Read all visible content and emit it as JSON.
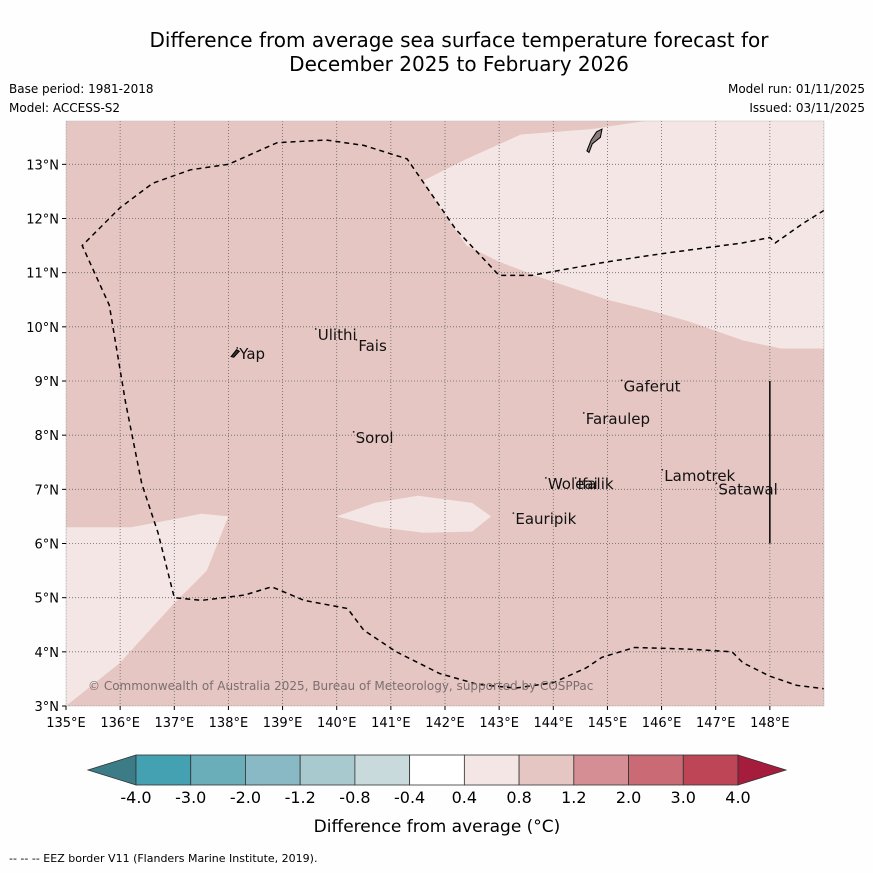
{
  "title": {
    "line1": "Difference from average sea surface temperature forecast for",
    "line2": "December 2025 to February 2026"
  },
  "info": {
    "base_period": "Base period: 1981-2018",
    "model": "Model: ACCESS-S2",
    "model_run": "Model run: 01/11/2025",
    "issued": "Issued: 03/11/2025"
  },
  "map": {
    "lon_range": [
      135,
      149
    ],
    "lat_range": [
      3,
      13.8
    ],
    "lon_ticks": [
      "135°E",
      "136°E",
      "137°E",
      "138°E",
      "139°E",
      "140°E",
      "141°E",
      "142°E",
      "143°E",
      "144°E",
      "145°E",
      "146°E",
      "147°E",
      "148°E"
    ],
    "lat_ticks": [
      "3°N",
      "4°N",
      "5°N",
      "6°N",
      "7°N",
      "8°N",
      "9°N",
      "10°N",
      "11°N",
      "12°N",
      "13°N"
    ],
    "background_class_color": "#e6c6c2",
    "light_class_color": "#f4e6e4",
    "eez_color": "#000000",
    "places": [
      {
        "name": "Yap",
        "lon": 138.2,
        "lat": 9.5
      },
      {
        "name": "Ulithi",
        "lon": 139.65,
        "lat": 9.85
      },
      {
        "name": "Fais",
        "lon": 140.4,
        "lat": 9.65
      },
      {
        "name": "Sorol",
        "lon": 140.35,
        "lat": 7.95
      },
      {
        "name": "Gaferut",
        "lon": 145.3,
        "lat": 8.9
      },
      {
        "name": "Faraulep",
        "lon": 144.6,
        "lat": 8.3
      },
      {
        "name": "Woleai",
        "lon": 143.9,
        "lat": 7.1
      },
      {
        "name": "Ifalik",
        "lon": 144.45,
        "lat": 7.1
      },
      {
        "name": "Lamotrek",
        "lon": 146.05,
        "lat": 7.25
      },
      {
        "name": "Satawal",
        "lon": 147.05,
        "lat": 7.0
      },
      {
        "name": "Eauripik",
        "lon": 143.3,
        "lat": 6.45
      }
    ],
    "copyright": "© Commonwealth of Australia 2025, Bureau of Meteorology, supported by COSPPac"
  },
  "legend": {
    "ticks": [
      "-4.0",
      "-3.0",
      "-2.0",
      "-1.2",
      "-0.8",
      "-0.4",
      "0.4",
      "0.8",
      "1.2",
      "2.0",
      "3.0",
      "4.0"
    ],
    "colors": [
      "#44a1b1",
      "#6aaeba",
      "#88b9c4",
      "#a8c9ce",
      "#c8dadc",
      "#ffffff",
      "#f4e6e4",
      "#e6c6c2",
      "#d58e93",
      "#ca6a74",
      "#bd4555"
    ],
    "low_extend_color": "#3b7c87",
    "high_extend_color": "#a51c3c",
    "label": "Difference from average (°C)"
  },
  "footer": "--  --  -- EEZ border V11 (Flanders Marine Institute, 2019)."
}
